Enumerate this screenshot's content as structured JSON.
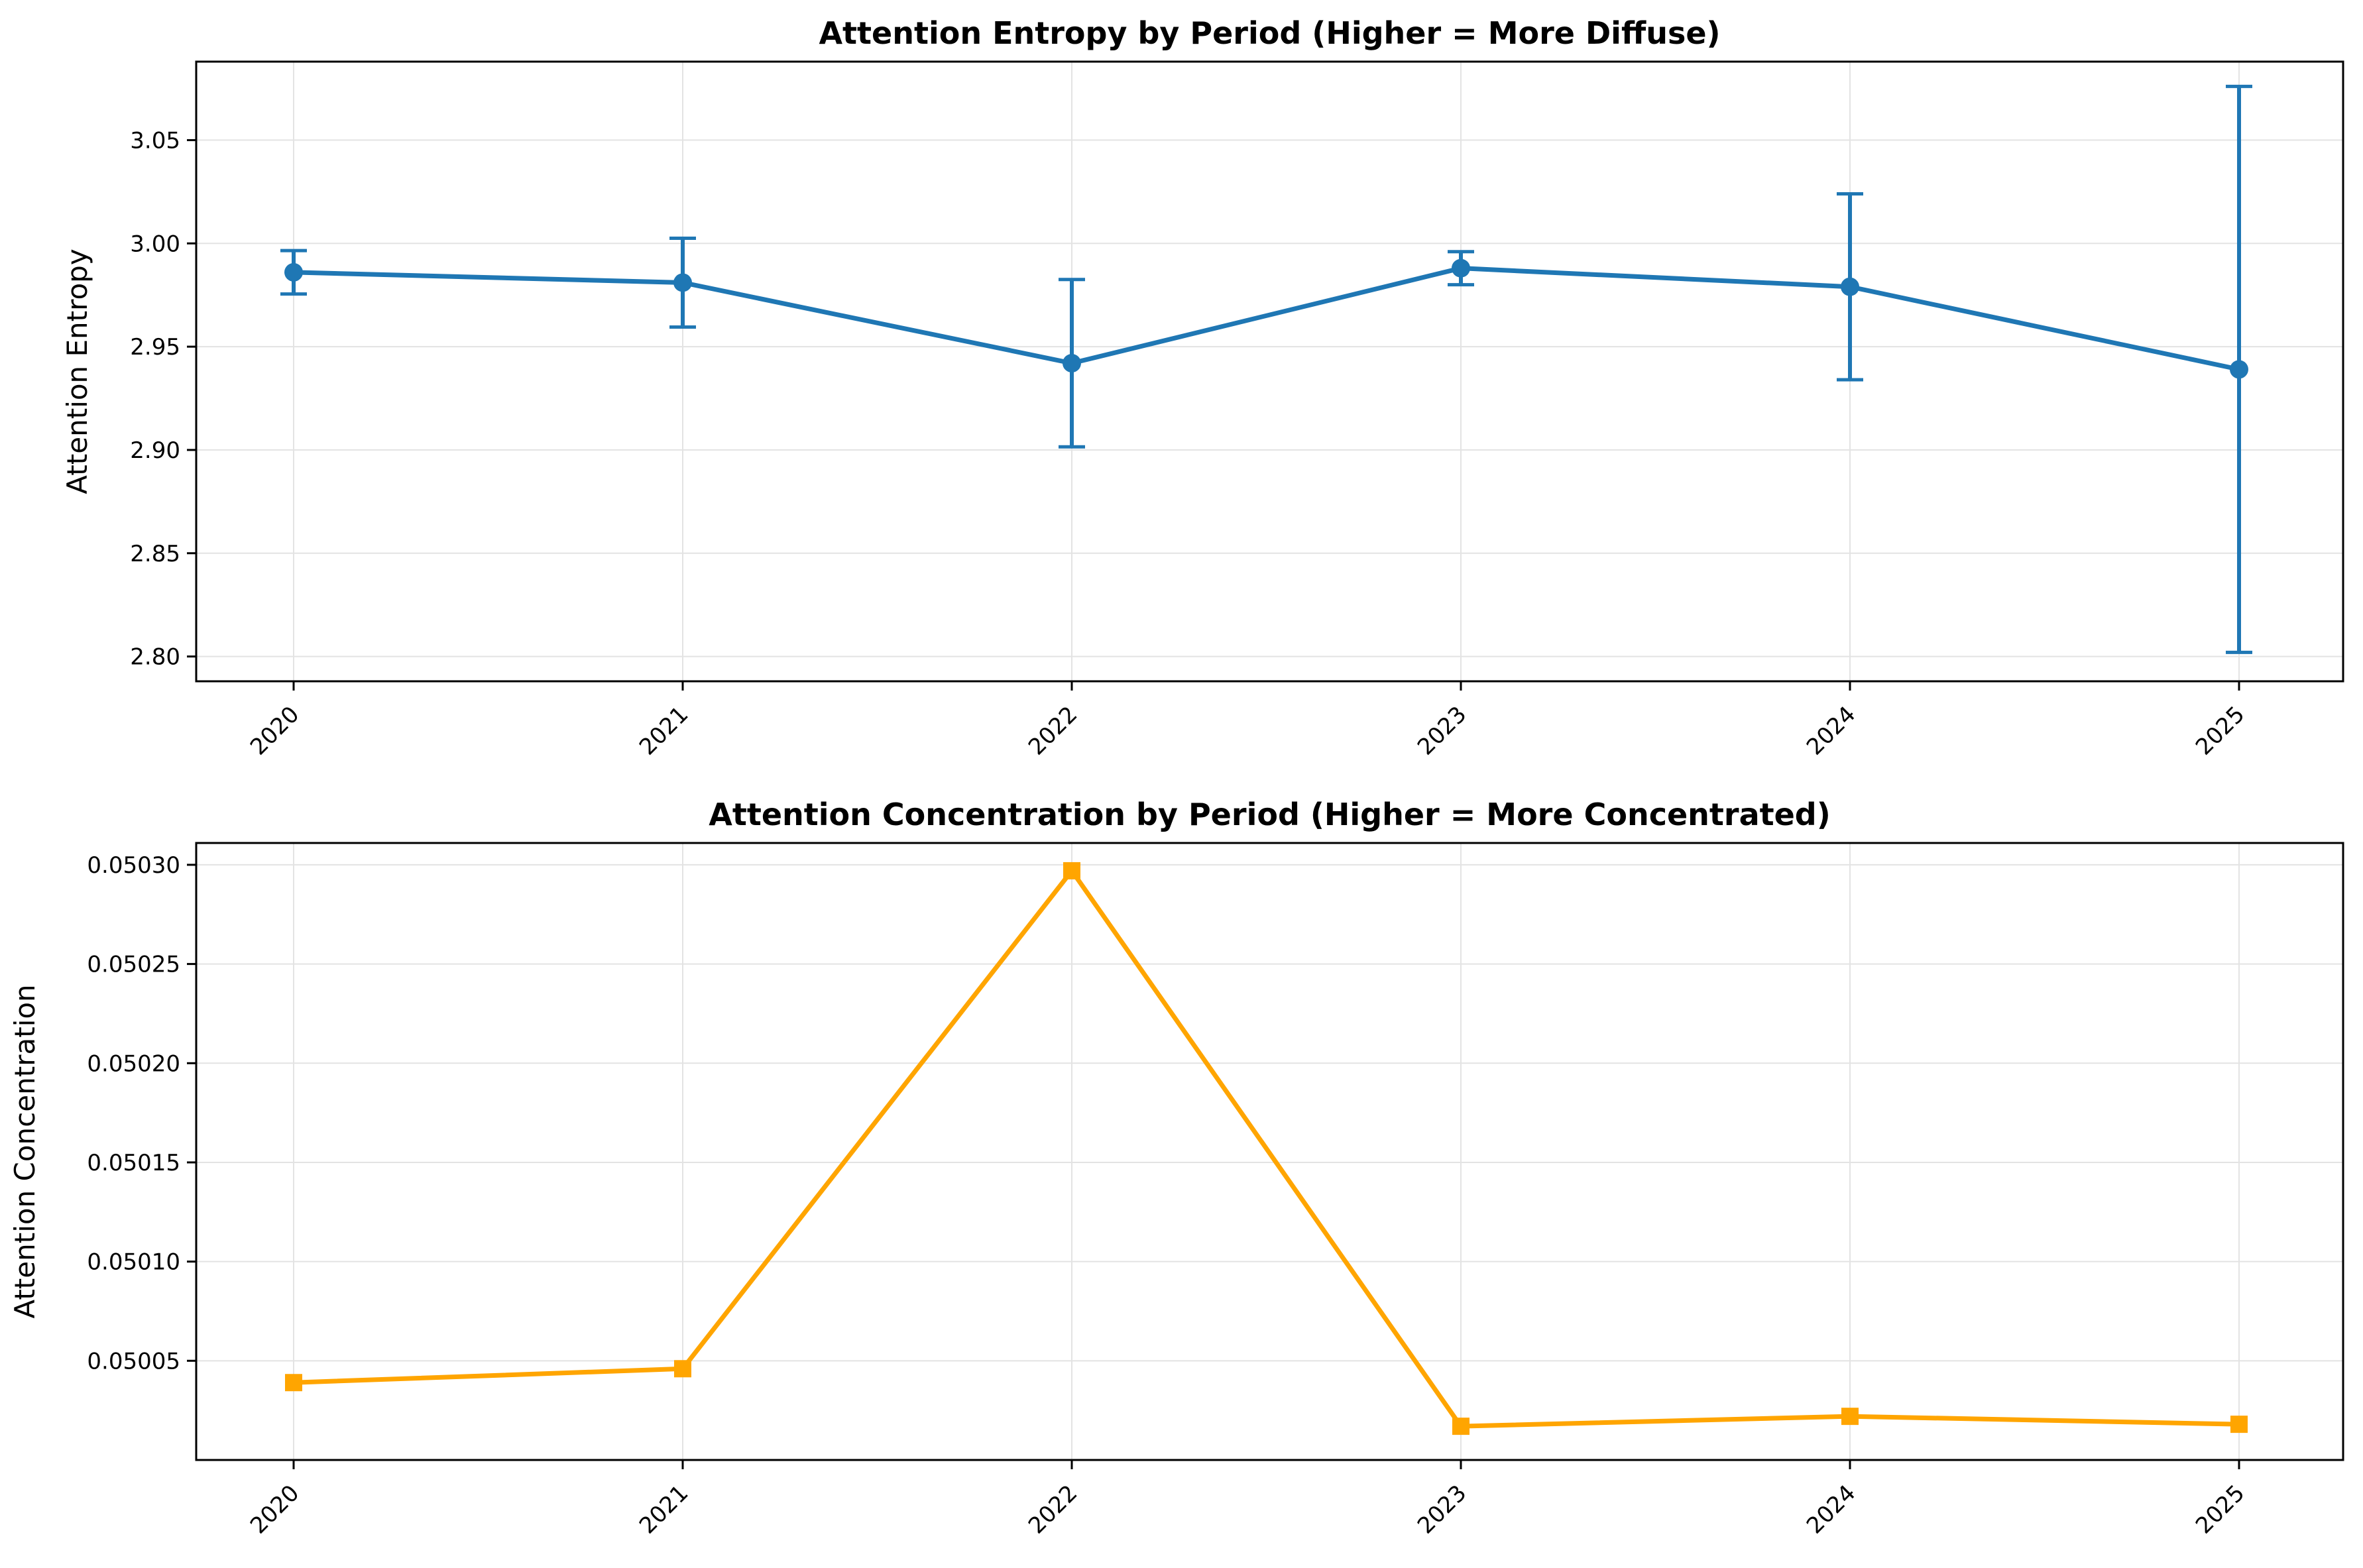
{
  "chart_data": [
    {
      "type": "line",
      "title": "Attention Entropy by Period (Higher = More Diffuse)",
      "xlabel": "",
      "ylabel": "Attention Entropy",
      "categories": [
        "2020",
        "2021",
        "2022",
        "2023",
        "2024",
        "2025"
      ],
      "series": [
        {
          "values": [
            2.986,
            2.981,
            2.942,
            2.988,
            2.979,
            2.939
          ],
          "error": [
            0.0105,
            0.0215,
            0.0405,
            0.008,
            0.045,
            0.137
          ],
          "color": "#1f77b4",
          "marker": "circle"
        }
      ],
      "ylim": [
        2.788,
        3.088
      ],
      "yticks": [
        "2.80",
        "2.85",
        "2.90",
        "2.95",
        "3.00",
        "3.05"
      ],
      "grid": true,
      "error_bars": true
    },
    {
      "type": "line",
      "title": "Attention Concentration by Period (Higher = More Concentrated)",
      "xlabel": "",
      "ylabel": "Attention Concentration",
      "categories": [
        "2020",
        "2021",
        "2022",
        "2023",
        "2024",
        "2025"
      ],
      "series": [
        {
          "values": [
            0.050039,
            0.050046,
            0.050297,
            0.050017,
            0.050022,
            0.050018
          ],
          "color": "#ffa500",
          "marker": "square"
        }
      ],
      "ylim": [
        0.05,
        0.050311
      ],
      "yticks": [
        "0.05005",
        "0.05010",
        "0.05015",
        "0.05020",
        "0.05025",
        "0.05030"
      ],
      "grid": true
    }
  ]
}
